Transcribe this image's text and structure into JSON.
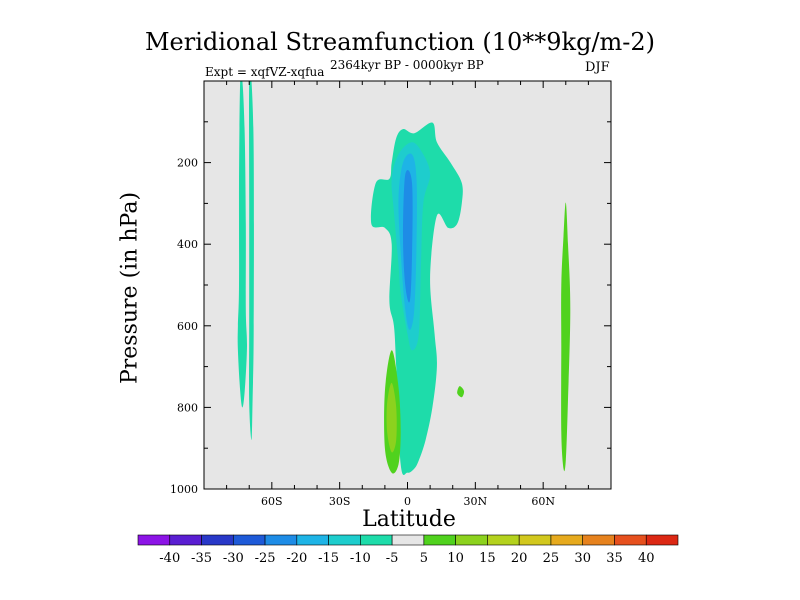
{
  "chart_data": {
    "type": "contour",
    "title": "Meridional Streamfunction (10**9kg/m-2)",
    "experiment_label": "Expt = xqfVZ-xqfua",
    "period_label": "2364kyr BP - 0000kyr BP",
    "season_label": "DJF",
    "xlabel": "Latitude",
    "ylabel": "Pressure (in hPa)",
    "xlim": [
      -90,
      90
    ],
    "ylim": [
      1000,
      0
    ],
    "x_ticks": [
      {
        "value": -60,
        "label": "60S"
      },
      {
        "value": -30,
        "label": "30S"
      },
      {
        "value": 0,
        "label": "0"
      },
      {
        "value": 30,
        "label": "30N"
      },
      {
        "value": 60,
        "label": "60N"
      }
    ],
    "y_ticks": [
      {
        "value": 200,
        "label": "200"
      },
      {
        "value": 400,
        "label": "400"
      },
      {
        "value": 600,
        "label": "600"
      },
      {
        "value": 800,
        "label": "800"
      },
      {
        "value": 1000,
        "label": "1000"
      }
    ],
    "background_color": "#e6e6e6",
    "colorbar": {
      "levels": [
        "-40",
        "-35",
        "-30",
        "-25",
        "-20",
        "-15",
        "-10",
        "-5",
        "5",
        "10",
        "15",
        "20",
        "25",
        "30",
        "35",
        "40"
      ],
      "colors": [
        "#8c14e6",
        "#5a1ed2",
        "#2838c8",
        "#1e5ad8",
        "#1e8ce6",
        "#1eb4e6",
        "#1ecdcd",
        "#1edcaa",
        "#e6e6e6",
        "#50d21e",
        "#8cd21e",
        "#b4d21e",
        "#d2c81e",
        "#e6aa1e",
        "#e6821e",
        "#e6501e",
        "#dc2814"
      ]
    },
    "regions": [
      {
        "name": "sh-high-lat-column-1",
        "value": -7,
        "points": [
          [
            -74,
            0
          ],
          [
            -73,
            0
          ],
          [
            -72,
            130
          ],
          [
            -71.5,
            350
          ],
          [
            -71.5,
            560
          ],
          [
            -71,
            650
          ],
          [
            -72,
            760
          ],
          [
            -73,
            800
          ],
          [
            -74,
            760
          ],
          [
            -75,
            660
          ],
          [
            -75,
            600
          ],
          [
            -74.5,
            500
          ],
          [
            -74.5,
            250
          ]
        ]
      },
      {
        "name": "sh-high-lat-column-2",
        "value": -7,
        "points": [
          [
            -70,
            0
          ],
          [
            -69,
            0
          ],
          [
            -68,
            180
          ],
          [
            -68,
            600
          ],
          [
            -68.5,
            780
          ],
          [
            -69,
            880
          ],
          [
            -70,
            790
          ],
          [
            -70,
            600
          ],
          [
            -70,
            300
          ]
        ]
      },
      {
        "name": "equatorial-cell-outer",
        "value": -7,
        "points": [
          [
            -5,
            140
          ],
          [
            -2,
            118
          ],
          [
            3,
            128
          ],
          [
            11,
            102
          ],
          [
            13,
            150
          ],
          [
            19,
            200
          ],
          [
            24,
            250
          ],
          [
            24,
            300
          ],
          [
            22,
            350
          ],
          [
            18,
            360
          ],
          [
            13,
            330
          ],
          [
            10,
            480
          ],
          [
            12,
            620
          ],
          [
            13,
            700
          ],
          [
            11,
            800
          ],
          [
            8,
            880
          ],
          [
            5,
            930
          ],
          [
            3,
            950
          ],
          [
            0,
            960
          ],
          [
            -3,
            940
          ],
          [
            -5,
            700
          ],
          [
            -6,
            600
          ],
          [
            -8,
            540
          ],
          [
            -7,
            400
          ],
          [
            -10,
            360
          ],
          [
            -16,
            350
          ],
          [
            -14,
            250
          ],
          [
            -8,
            240
          ],
          [
            -7,
            200
          ]
        ]
      },
      {
        "name": "equatorial-cell-mid",
        "value": -12,
        "points": [
          [
            -4,
            180
          ],
          [
            2,
            150
          ],
          [
            7,
            180
          ],
          [
            10,
            230
          ],
          [
            7,
            300
          ],
          [
            6,
            440
          ],
          [
            5,
            620
          ],
          [
            2,
            660
          ],
          [
            0,
            620
          ],
          [
            -3,
            520
          ],
          [
            -4,
            450
          ],
          [
            -6,
            320
          ],
          [
            -7,
            240
          ]
        ]
      },
      {
        "name": "equatorial-cell-inner",
        "value": -17,
        "points": [
          [
            -2,
            200
          ],
          [
            2,
            180
          ],
          [
            4,
            240
          ],
          [
            4,
            400
          ],
          [
            3,
            560
          ],
          [
            1,
            610
          ],
          [
            -1,
            560
          ],
          [
            -3,
            420
          ],
          [
            -4,
            290
          ]
        ]
      },
      {
        "name": "equatorial-cell-core",
        "value": -22,
        "points": [
          [
            -1,
            230
          ],
          [
            2,
            250
          ],
          [
            2,
            430
          ],
          [
            1,
            540
          ],
          [
            -1,
            500
          ],
          [
            -2,
            380
          ]
        ]
      },
      {
        "name": "sh-subtropical-positive-outer",
        "value": 7,
        "points": [
          [
            -7,
            660
          ],
          [
            -4,
            750
          ],
          [
            -3,
            860
          ],
          [
            -4,
            940
          ],
          [
            -7,
            960
          ],
          [
            -10,
            900
          ],
          [
            -10,
            760
          ]
        ]
      },
      {
        "name": "sh-subtropical-positive-inner",
        "value": 12,
        "points": [
          [
            -7,
            740
          ],
          [
            -5,
            800
          ],
          [
            -5,
            880
          ],
          [
            -7,
            910
          ],
          [
            -9,
            860
          ],
          [
            -9,
            790
          ]
        ]
      },
      {
        "name": "nh-subtropical-speck",
        "value": 7,
        "points": [
          [
            23,
            748
          ],
          [
            25,
            760
          ],
          [
            24,
            775
          ],
          [
            22,
            765
          ]
        ]
      },
      {
        "name": "nh-high-lat-positive",
        "value": 7,
        "points": [
          [
            70,
            298
          ],
          [
            71,
            400
          ],
          [
            72,
            560
          ],
          [
            71,
            780
          ],
          [
            70,
            930
          ],
          [
            69,
            950
          ],
          [
            68,
            860
          ],
          [
            68,
            650
          ],
          [
            68,
            500
          ],
          [
            69,
            380
          ]
        ]
      }
    ]
  }
}
